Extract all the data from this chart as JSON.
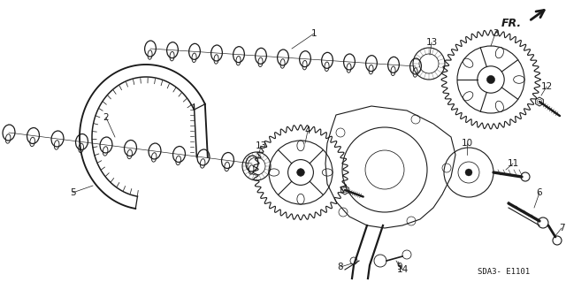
{
  "background_color": "#ffffff",
  "line_color": "#1a1a1a",
  "figsize": [
    6.4,
    3.19
  ],
  "dpi": 100,
  "diagram_code": "SDA3- E1101",
  "annotation_fontsize": 7.5,
  "code_fontsize": 6.5
}
